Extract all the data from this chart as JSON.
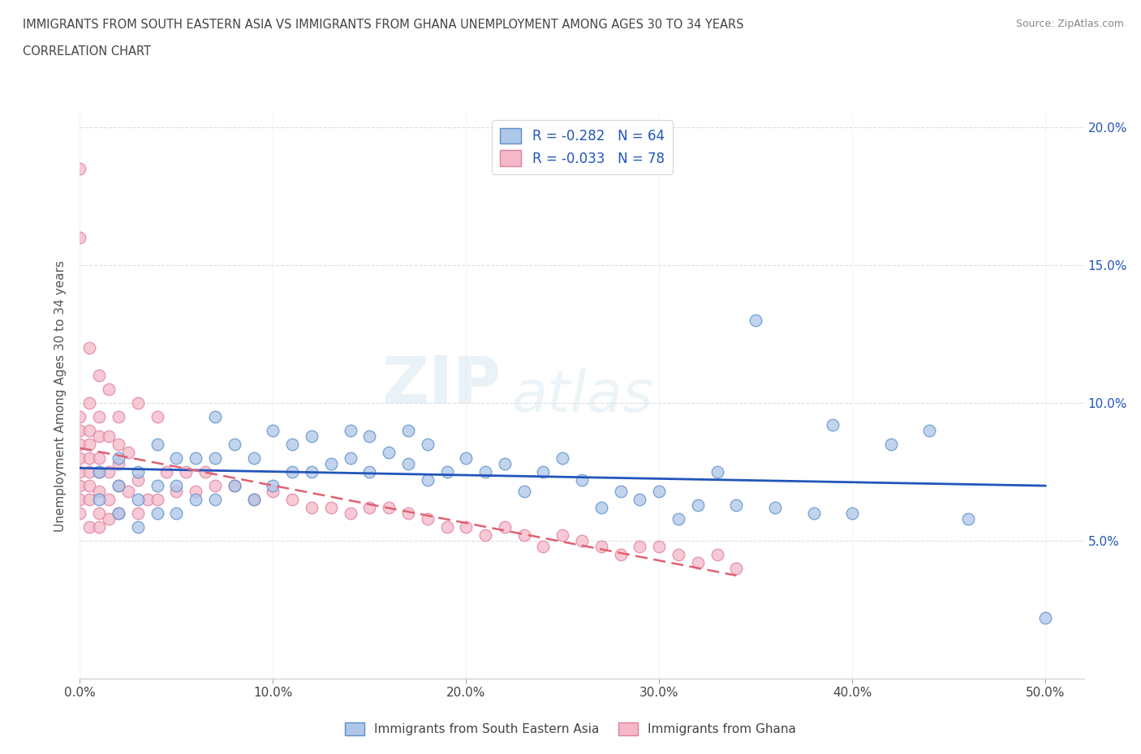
{
  "title_line1": "IMMIGRANTS FROM SOUTH EASTERN ASIA VS IMMIGRANTS FROM GHANA UNEMPLOYMENT AMONG AGES 30 TO 34 YEARS",
  "title_line2": "CORRELATION CHART",
  "source": "Source: ZipAtlas.com",
  "ylabel": "Unemployment Among Ages 30 to 34 years",
  "blue_color": "#aec6e8",
  "pink_color": "#f4b8c8",
  "blue_edge_color": "#5b8fcb",
  "pink_edge_color": "#e080a0",
  "blue_line_color": "#2255bb",
  "pink_line_color": "#e06070",
  "pink_line_dash": [
    6,
    3
  ],
  "watermark_zip": "ZIP",
  "watermark_atlas": "atlas",
  "legend_r_blue": "R = -0.282   N = 64",
  "legend_r_pink": "R = -0.033   N = 78",
  "legend_bottom_blue": "Immigrants from South Eastern Asia",
  "legend_bottom_pink": "Immigrants from Ghana",
  "blue_scatter_x": [
    0.01,
    0.01,
    0.02,
    0.02,
    0.02,
    0.03,
    0.03,
    0.03,
    0.04,
    0.04,
    0.04,
    0.05,
    0.05,
    0.05,
    0.06,
    0.06,
    0.07,
    0.07,
    0.07,
    0.08,
    0.08,
    0.09,
    0.09,
    0.1,
    0.1,
    0.11,
    0.11,
    0.12,
    0.12,
    0.13,
    0.14,
    0.14,
    0.15,
    0.15,
    0.16,
    0.17,
    0.17,
    0.18,
    0.18,
    0.19,
    0.2,
    0.21,
    0.22,
    0.23,
    0.24,
    0.25,
    0.26,
    0.27,
    0.28,
    0.29,
    0.3,
    0.31,
    0.32,
    0.33,
    0.34,
    0.35,
    0.36,
    0.38,
    0.39,
    0.4,
    0.42,
    0.44,
    0.46,
    0.5
  ],
  "blue_scatter_y": [
    0.065,
    0.075,
    0.06,
    0.07,
    0.08,
    0.055,
    0.065,
    0.075,
    0.06,
    0.07,
    0.085,
    0.06,
    0.07,
    0.08,
    0.065,
    0.08,
    0.065,
    0.08,
    0.095,
    0.07,
    0.085,
    0.065,
    0.08,
    0.07,
    0.09,
    0.075,
    0.085,
    0.075,
    0.088,
    0.078,
    0.08,
    0.09,
    0.075,
    0.088,
    0.082,
    0.078,
    0.09,
    0.072,
    0.085,
    0.075,
    0.08,
    0.075,
    0.078,
    0.068,
    0.075,
    0.08,
    0.072,
    0.062,
    0.068,
    0.065,
    0.068,
    0.058,
    0.063,
    0.075,
    0.063,
    0.13,
    0.062,
    0.06,
    0.092,
    0.06,
    0.085,
    0.09,
    0.058,
    0.022
  ],
  "pink_scatter_x": [
    0.0,
    0.0,
    0.0,
    0.0,
    0.0,
    0.0,
    0.0,
    0.0,
    0.0,
    0.0,
    0.005,
    0.005,
    0.005,
    0.005,
    0.005,
    0.005,
    0.005,
    0.005,
    0.005,
    0.01,
    0.01,
    0.01,
    0.01,
    0.01,
    0.01,
    0.01,
    0.01,
    0.015,
    0.015,
    0.015,
    0.015,
    0.015,
    0.02,
    0.02,
    0.02,
    0.02,
    0.02,
    0.025,
    0.025,
    0.03,
    0.03,
    0.03,
    0.035,
    0.04,
    0.04,
    0.045,
    0.05,
    0.055,
    0.06,
    0.065,
    0.07,
    0.08,
    0.09,
    0.1,
    0.11,
    0.12,
    0.13,
    0.14,
    0.15,
    0.16,
    0.17,
    0.18,
    0.19,
    0.2,
    0.21,
    0.22,
    0.23,
    0.24,
    0.25,
    0.26,
    0.27,
    0.28,
    0.29,
    0.3,
    0.31,
    0.32,
    0.33,
    0.34
  ],
  "pink_scatter_y": [
    0.06,
    0.065,
    0.07,
    0.075,
    0.08,
    0.085,
    0.09,
    0.095,
    0.16,
    0.185,
    0.055,
    0.065,
    0.07,
    0.075,
    0.08,
    0.085,
    0.09,
    0.1,
    0.12,
    0.055,
    0.06,
    0.068,
    0.075,
    0.08,
    0.088,
    0.095,
    0.11,
    0.058,
    0.065,
    0.075,
    0.088,
    0.105,
    0.06,
    0.07,
    0.078,
    0.085,
    0.095,
    0.068,
    0.082,
    0.06,
    0.072,
    0.1,
    0.065,
    0.065,
    0.095,
    0.075,
    0.068,
    0.075,
    0.068,
    0.075,
    0.07,
    0.07,
    0.065,
    0.068,
    0.065,
    0.062,
    0.062,
    0.06,
    0.062,
    0.062,
    0.06,
    0.058,
    0.055,
    0.055,
    0.052,
    0.055,
    0.052,
    0.048,
    0.052,
    0.05,
    0.048,
    0.045,
    0.048,
    0.048,
    0.045,
    0.042,
    0.045,
    0.04
  ],
  "xlim": [
    0.0,
    0.52
  ],
  "ylim": [
    0.0,
    0.205
  ],
  "xticks": [
    0.0,
    0.1,
    0.2,
    0.3,
    0.4,
    0.5
  ],
  "yticks": [
    0.05,
    0.1,
    0.15,
    0.2
  ]
}
